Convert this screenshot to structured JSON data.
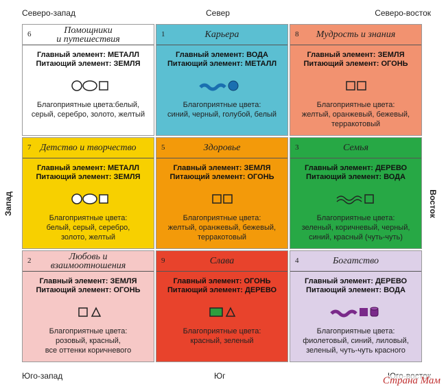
{
  "compass": {
    "north_west": "Северо-запад",
    "north": "Север",
    "north_east": "Северо-восток",
    "west": "Запад",
    "east": "Восток",
    "south_west": "Юго-запад",
    "south": "Юг",
    "south_east": "Юго-восток"
  },
  "cells": [
    {
      "number": "6",
      "title": [
        "Помощники",
        "и путешествия"
      ],
      "color": "#ffffff",
      "main": "Главный элемент: МЕТАЛЛ",
      "feeding": "Питающий элемент: ЗЕМЛЯ",
      "colors": [
        "Благоприятные цвета:белый,",
        "серый, серебро, золото, желтый"
      ]
    },
    {
      "number": "1",
      "title": [
        "Карьера"
      ],
      "color": "#5bbfd2",
      "main": "Главный элемент: ВОДА",
      "feeding": "Питающий элемент: МЕТАЛЛ",
      "colors": [
        "Благоприятные цвета:",
        "синий, черный, голубой, белый"
      ]
    },
    {
      "number": "8",
      "title": [
        "Мудрость и знания"
      ],
      "color": "#f29270",
      "main": "Главный элемент: ЗЕМЛЯ",
      "feeding": "Питающий элемент: ОГОНЬ",
      "colors": [
        "Благоприятные цвета:",
        "желтый, оранжевый, бежевый,",
        "терракотовый"
      ]
    },
    {
      "number": "7",
      "title": [
        "Детство и творчество"
      ],
      "color": "#f7d000",
      "main": "Главный элемент: МЕТАЛЛ",
      "feeding": "Питающий элемент: ЗЕМЛЯ",
      "colors": [
        "Благоприятные цвета:",
        "белый, серый, серебро,",
        "золото, желтый"
      ]
    },
    {
      "number": "5",
      "title": [
        "Здоровье"
      ],
      "color": "#f39a0a",
      "main": "Главный элемент: ЗЕМЛЯ",
      "feeding": "Питающий элемент: ОГОНЬ",
      "colors": [
        "Благоприятные цвета:",
        "желтый, оранжевый, бежевый,",
        "терракотовый"
      ]
    },
    {
      "number": "3",
      "title": [
        "Семья"
      ],
      "color": "#27a845",
      "main": "Главный элемент: ДЕРЕВО",
      "feeding": "Питающий элемент: ВОДА",
      "colors": [
        "Благоприятные цвета:",
        "зеленый, коричневый, черный,",
        "синий, красный (чуть-чуть)"
      ]
    },
    {
      "number": "2",
      "title": [
        "Любовь и",
        "взаимоотношения"
      ],
      "color": "#f6c8c6",
      "main": "Главный элемент: ЗЕМЛЯ",
      "feeding": "Питающий элемент: ОГОНЬ",
      "colors": [
        "Благоприятные цвета:",
        "розовый, красный,",
        "все оттенки коричневого"
      ]
    },
    {
      "number": "9",
      "title": [
        "Слава"
      ],
      "color": "#e8432c",
      "main": "Главный элемент: ОГОНЬ",
      "feeding": "Питающий элемент: ДЕРЕВО",
      "colors": [
        "Благоприятные цвета:",
        "красный, зеленый"
      ]
    },
    {
      "number": "4",
      "title": [
        "Богатство"
      ],
      "color": "#ddd0e8",
      "main": "Главный элемент: ДЕРЕВО",
      "feeding": "Питающий элемент: ВОДА",
      "colors": [
        "Благоприятные цвета:",
        "фиолетовый, синий, лиловый,",
        "зеленый, чуть-чуть красного"
      ]
    }
  ],
  "watermark": "Страна Мам"
}
